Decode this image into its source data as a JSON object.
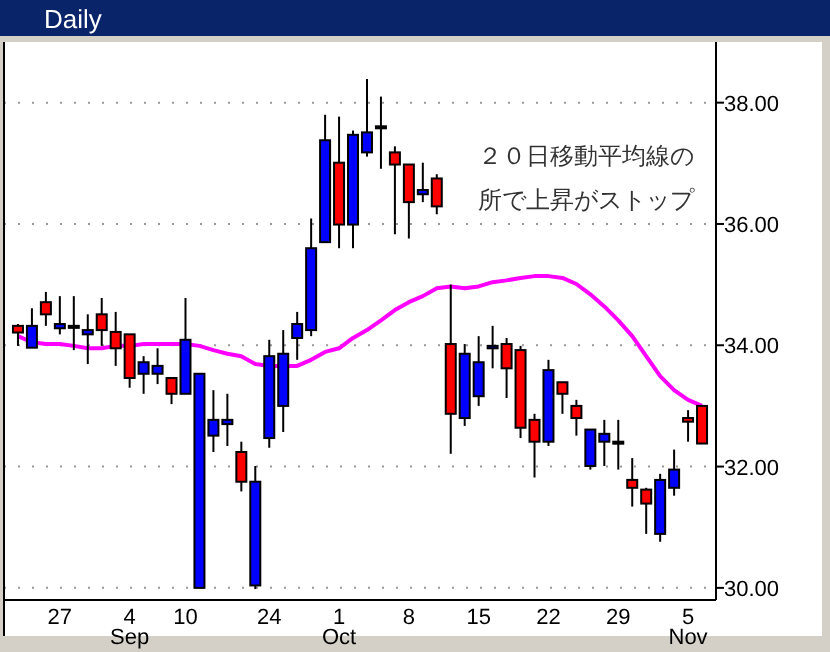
{
  "chart_data": {
    "type": "candlestick",
    "title": "Daily",
    "categories": [
      null,
      null,
      null,
      "27",
      null,
      null,
      null,
      null,
      "4\nSep",
      null,
      null,
      null,
      "10",
      null,
      null,
      null,
      null,
      null,
      "24",
      null,
      null,
      null,
      null,
      "1\nOct",
      null,
      null,
      null,
      null,
      "8",
      null,
      null,
      null,
      null,
      "15",
      null,
      null,
      null,
      null,
      "22",
      null,
      null,
      null,
      null,
      "29",
      null,
      null,
      null,
      null,
      "5\nNov",
      null
    ],
    "series": [
      {
        "type": "candlestick",
        "ohlc": [
          [
            34.32,
            34.35,
            33.99,
            34.21
          ],
          [
            33.96,
            34.61,
            33.96,
            34.32
          ],
          [
            34.71,
            34.88,
            34.32,
            34.51
          ],
          [
            34.28,
            34.81,
            34.18,
            34.35
          ],
          [
            34.32,
            34.81,
            33.92,
            34.32
          ],
          [
            34.18,
            34.51,
            33.69,
            34.25
          ],
          [
            34.51,
            34.78,
            33.99,
            34.25
          ],
          [
            34.22,
            34.55,
            33.66,
            33.95
          ],
          [
            34.18,
            34.18,
            33.3,
            33.46
          ],
          [
            33.53,
            33.82,
            33.2,
            33.72
          ],
          [
            33.53,
            33.95,
            33.36,
            33.66
          ],
          [
            33.46,
            33.46,
            33.03,
            33.2
          ],
          [
            33.2,
            34.78,
            33.2,
            34.09
          ],
          [
            30.0,
            33.53,
            30.0,
            33.53
          ],
          [
            32.51,
            33.26,
            32.24,
            32.77
          ],
          [
            32.7,
            33.2,
            32.34,
            32.77
          ],
          [
            32.24,
            32.41,
            31.59,
            31.75
          ],
          [
            30.04,
            32.01,
            29.98,
            31.75
          ],
          [
            32.47,
            34.09,
            32.31,
            33.82
          ],
          [
            33.0,
            34.25,
            32.57,
            33.86
          ],
          [
            34.12,
            34.55,
            33.76,
            34.35
          ],
          [
            34.25,
            36.09,
            34.15,
            35.6
          ],
          [
            35.7,
            37.8,
            35.7,
            37.38
          ],
          [
            37.01,
            37.77,
            35.6,
            35.99
          ],
          [
            35.99,
            37.54,
            35.6,
            37.47
          ],
          [
            37.18,
            38.39,
            37.11,
            37.51
          ],
          [
            37.61,
            38.1,
            36.91,
            37.61
          ],
          [
            37.18,
            37.28,
            35.83,
            36.98
          ],
          [
            36.98,
            36.98,
            35.76,
            36.36
          ],
          [
            36.49,
            37.01,
            36.36,
            36.56
          ],
          [
            36.75,
            36.82,
            36.16,
            36.29
          ],
          [
            34.02,
            35.0,
            32.21,
            32.87
          ],
          [
            32.8,
            34.02,
            32.67,
            33.86
          ],
          [
            33.16,
            34.15,
            33.0,
            33.72
          ],
          [
            33.95,
            34.32,
            33.62,
            33.99
          ],
          [
            34.02,
            34.12,
            33.13,
            33.62
          ],
          [
            33.92,
            33.99,
            32.47,
            32.64
          ],
          [
            32.77,
            32.87,
            31.82,
            32.41
          ],
          [
            32.41,
            33.76,
            32.34,
            33.59
          ],
          [
            33.39,
            33.39,
            32.87,
            33.2
          ],
          [
            33.0,
            33.1,
            32.51,
            32.8
          ],
          [
            32.01,
            32.61,
            31.95,
            32.61
          ],
          [
            32.41,
            32.77,
            32.01,
            32.54
          ],
          [
            32.41,
            32.77,
            31.95,
            32.41
          ],
          [
            31.78,
            32.14,
            31.34,
            31.65
          ],
          [
            31.62,
            31.65,
            30.89,
            31.39
          ],
          [
            30.89,
            31.88,
            30.76,
            31.78
          ],
          [
            31.65,
            32.28,
            31.52,
            31.95
          ],
          [
            32.8,
            32.93,
            32.41,
            32.74
          ],
          [
            33.0,
            33.0,
            32.38,
            32.38
          ]
        ],
        "colors": [
          "#ff0000",
          "#0000ff",
          "#ff0000",
          "#0000ff",
          "#0000ff",
          "#0000ff",
          "#ff0000",
          "#ff0000",
          "#ff0000",
          "#0000ff",
          "#0000ff",
          "#ff0000",
          "#0000ff",
          "#0000ff",
          "#0000ff",
          "#0000ff",
          "#ff0000",
          "#0000ff",
          "#0000ff",
          "#0000ff",
          "#0000ff",
          "#0000ff",
          "#0000ff",
          "#ff0000",
          "#0000ff",
          "#0000ff",
          "#0000ff",
          "#ff0000",
          "#ff0000",
          "#0000ff",
          "#ff0000",
          "#ff0000",
          "#0000ff",
          "#0000ff",
          "#0000ff",
          "#ff0000",
          "#ff0000",
          "#ff0000",
          "#0000ff",
          "#ff0000",
          "#ff0000",
          "#0000ff",
          "#0000ff",
          "#0000ff",
          "#ff0000",
          "#ff0000",
          "#0000ff",
          "#0000ff",
          "#ff0000",
          "#ff0000"
        ]
      },
      {
        "type": "line",
        "color": "#ff00ff",
        "values": [
          34.15,
          34.05,
          34.02,
          34.02,
          33.99,
          33.95,
          33.95,
          33.99,
          33.99,
          34.02,
          34.02,
          34.02,
          34.02,
          33.99,
          33.92,
          33.86,
          33.82,
          33.69,
          33.66,
          33.66,
          33.66,
          33.76,
          33.89,
          33.95,
          34.12,
          34.25,
          34.41,
          34.58,
          34.71,
          34.81,
          34.94,
          34.97,
          34.94,
          34.97,
          35.04,
          35.07,
          35.11,
          35.14,
          35.14,
          35.11,
          35.01,
          34.84,
          34.64,
          34.41,
          34.15,
          33.82,
          33.49,
          33.26,
          33.1,
          33.0
        ]
      }
    ],
    "ylim": [
      29.8,
      39.0
    ],
    "yticks": [
      {
        "value": 30,
        "label": "30.00"
      },
      {
        "value": 32,
        "label": "32.00"
      },
      {
        "value": 34,
        "label": "34.00"
      },
      {
        "value": 36,
        "label": "36.00"
      },
      {
        "value": 38,
        "label": "38.00"
      }
    ],
    "grid": "y",
    "annotations": [
      "２０日移動平均線の",
      "所で上昇がストップ"
    ]
  }
}
